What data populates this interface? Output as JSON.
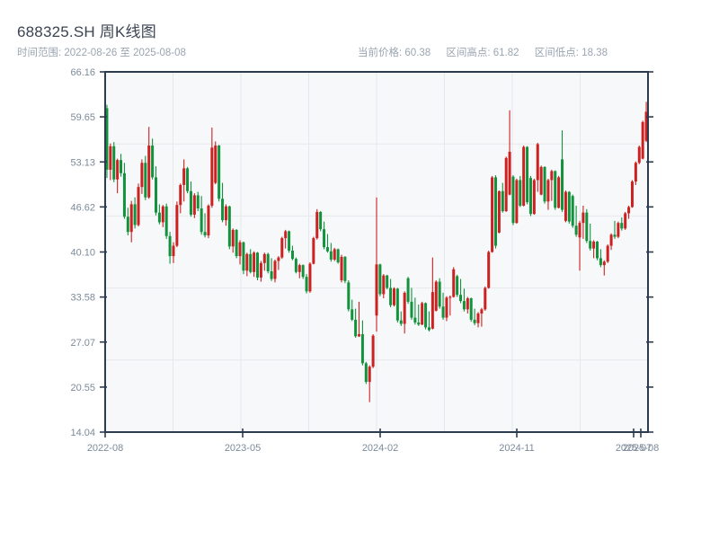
{
  "header": {
    "title": "688325.SH 周K线图",
    "range_label": "时间范围: 2022-08-26 至 2025-08-08",
    "info": [
      {
        "label": "当前价格:",
        "value": "60.38"
      },
      {
        "label": "区间高点:",
        "value": "61.82"
      },
      {
        "label": "区间低点:",
        "value": "18.38"
      }
    ]
  },
  "chart_data": {
    "type": "candlestick",
    "symbol": "688325.SH",
    "title": "688325.SH 周K线图",
    "freq": "weekly",
    "start_date": "2022-08-26",
    "end_date": "2025-08-08",
    "current_price": 60.38,
    "range_high": 61.82,
    "range_low": 18.38,
    "ylim": [
      14.04,
      66.16
    ],
    "y_ticks": [
      {
        "label": "66.16",
        "value": 66.16
      },
      {
        "label": "59.65",
        "value": 59.65
      },
      {
        "label": "53.13",
        "value": 53.13
      },
      {
        "label": "46.62",
        "value": 46.62
      },
      {
        "label": "40.10",
        "value": 40.1
      },
      {
        "label": "33.58",
        "value": 33.58
      },
      {
        "label": "27.07",
        "value": 27.07
      },
      {
        "label": "20.55",
        "value": 20.55
      },
      {
        "label": "14.04",
        "value": 14.04
      }
    ],
    "x_ticks": [
      {
        "label": "2022-08",
        "x": 117
      },
      {
        "label": "2023-05",
        "x": 270
      },
      {
        "label": "2024-02",
        "x": 423
      },
      {
        "label": "2024-11",
        "x": 575
      },
      {
        "label": "2025-07",
        "x": 705
      },
      {
        "label": "2025-08",
        "x": 713
      }
    ],
    "grid": {
      "h_divisions": 5,
      "v_divisions": 8
    },
    "colors": {
      "up": "#cb2120",
      "down": "#12923c"
    },
    "ohlc_format": [
      "open",
      "high",
      "low",
      "close"
    ],
    "ohlc": [
      [
        60.9,
        61.4,
        50.8,
        52.0
      ],
      [
        52.0,
        55.8,
        50.5,
        55.4
      ],
      [
        55.4,
        56.0,
        50.2,
        50.6
      ],
      [
        50.6,
        53.6,
        48.6,
        53.4
      ],
      [
        53.4,
        54.3,
        51.0,
        51.5
      ],
      [
        51.5,
        53.0,
        44.9,
        45.2
      ],
      [
        45.2,
        46.5,
        42.5,
        43.0
      ],
      [
        43.0,
        47.5,
        41.5,
        47.0
      ],
      [
        47.0,
        48.0,
        43.5,
        44.0
      ],
      [
        44.0,
        50.0,
        43.8,
        49.5
      ],
      [
        49.5,
        53.5,
        48.5,
        53.0
      ],
      [
        53.0,
        54.0,
        47.6,
        48.0
      ],
      [
        48.0,
        58.2,
        47.8,
        55.5
      ],
      [
        55.5,
        56.5,
        50.6,
        50.9
      ],
      [
        50.9,
        52.5,
        45.4,
        45.8
      ],
      [
        45.8,
        47.0,
        44.1,
        44.4
      ],
      [
        44.4,
        46.9,
        43.7,
        46.7
      ],
      [
        46.7,
        47.1,
        42.0,
        42.4
      ],
      [
        42.4,
        43.0,
        38.4,
        39.5
      ],
      [
        39.5,
        41.5,
        38.5,
        41.0
      ],
      [
        41.0,
        47.4,
        40.8,
        46.9
      ],
      [
        46.9,
        50.0,
        45.7,
        49.8
      ],
      [
        49.8,
        53.5,
        47.4,
        52.2
      ],
      [
        52.2,
        52.4,
        48.6,
        48.9
      ],
      [
        48.9,
        50.3,
        45.2,
        45.5
      ],
      [
        45.5,
        48.6,
        45.0,
        48.3
      ],
      [
        48.3,
        48.8,
        46.0,
        46.4
      ],
      [
        46.4,
        48.2,
        42.6,
        43.0
      ],
      [
        43.0,
        45.7,
        42.2,
        42.5
      ],
      [
        42.5,
        47.0,
        42.1,
        46.8
      ],
      [
        46.8,
        58.1,
        46.5,
        55.2
      ],
      [
        50.1,
        56.1,
        49.9,
        55.5
      ],
      [
        55.5,
        55.6,
        47.4,
        47.8
      ],
      [
        47.8,
        50.1,
        44.4,
        44.7
      ],
      [
        44.7,
        47.0,
        43.9,
        46.7
      ],
      [
        46.7,
        46.8,
        40.5,
        40.9
      ],
      [
        40.9,
        43.5,
        40.0,
        43.3
      ],
      [
        43.3,
        43.4,
        39.2,
        39.5
      ],
      [
        39.5,
        41.8,
        38.3,
        41.5
      ],
      [
        41.5,
        41.6,
        36.9,
        37.4
      ],
      [
        37.4,
        40.0,
        36.6,
        39.8
      ],
      [
        39.8,
        40.5,
        37.0,
        37.2
      ],
      [
        37.2,
        40.2,
        36.5,
        40.0
      ],
      [
        40.0,
        40.1,
        36.0,
        36.4
      ],
      [
        36.4,
        38.8,
        35.8,
        38.5
      ],
      [
        38.5,
        40.0,
        37.4,
        39.8
      ],
      [
        39.8,
        40.0,
        37.0,
        37.3
      ],
      [
        37.3,
        39.2,
        35.9,
        36.2
      ],
      [
        36.2,
        39.0,
        35.7,
        38.8
      ],
      [
        38.8,
        39.5,
        37.5,
        39.3
      ],
      [
        39.3,
        42.3,
        39.1,
        42.1
      ],
      [
        42.1,
        43.3,
        40.6,
        43.1
      ],
      [
        43.1,
        43.2,
        40.0,
        40.3
      ],
      [
        40.3,
        41.0,
        38.9,
        39.1
      ],
      [
        39.1,
        39.3,
        37.0,
        37.2
      ],
      [
        37.2,
        38.4,
        36.3,
        38.2
      ],
      [
        38.2,
        38.3,
        36.2,
        36.5
      ],
      [
        36.5,
        36.9,
        34.1,
        34.4
      ],
      [
        34.4,
        38.6,
        34.2,
        38.4
      ],
      [
        38.4,
        42.3,
        38.3,
        42.1
      ],
      [
        42.1,
        46.3,
        41.9,
        45.9
      ],
      [
        45.9,
        46.0,
        43.1,
        43.4
      ],
      [
        43.4,
        44.5,
        40.5,
        40.8
      ],
      [
        40.8,
        42.7,
        40.0,
        40.2
      ],
      [
        40.2,
        41.4,
        38.7,
        39.0
      ],
      [
        39.0,
        40.7,
        38.8,
        40.5
      ],
      [
        40.5,
        40.6,
        38.4,
        38.6
      ],
      [
        36.0,
        39.7,
        35.7,
        39.4
      ],
      [
        39.4,
        39.5,
        35.6,
        35.9
      ],
      [
        35.7,
        36.0,
        31.5,
        31.8
      ],
      [
        31.8,
        33.2,
        30.1,
        30.3
      ],
      [
        30.3,
        31.9,
        27.7,
        27.9
      ],
      [
        27.9,
        32.9,
        27.8,
        28.2
      ],
      [
        28.2,
        30.2,
        23.7,
        24.0
      ],
      [
        24.0,
        24.2,
        21.0,
        21.3
      ],
      [
        21.3,
        23.7,
        18.38,
        23.5
      ],
      [
        23.5,
        28.2,
        23.3,
        28.0
      ],
      [
        30.9,
        48.0,
        28.6,
        38.3
      ],
      [
        38.3,
        38.4,
        33.7,
        34.0
      ],
      [
        34.0,
        36.9,
        33.4,
        36.7
      ],
      [
        36.7,
        36.8,
        34.7,
        34.9
      ],
      [
        34.9,
        36.2,
        32.1,
        32.4
      ],
      [
        32.4,
        35.0,
        32.2,
        34.8
      ],
      [
        34.8,
        34.9,
        29.9,
        30.2
      ],
      [
        30.2,
        31.5,
        29.4,
        29.7
      ],
      [
        29.7,
        34.4,
        28.3,
        34.2
      ],
      [
        36.3,
        36.5,
        32.6,
        32.9
      ],
      [
        32.9,
        34.9,
        30.3,
        30.6
      ],
      [
        30.6,
        33.5,
        29.6,
        29.9
      ],
      [
        29.9,
        32.5,
        29.4,
        29.6
      ],
      [
        29.6,
        32.9,
        29.5,
        32.7
      ],
      [
        32.7,
        32.8,
        28.9,
        29.2
      ],
      [
        29.2,
        31.5,
        28.6,
        28.8
      ],
      [
        29.0,
        39.3,
        28.9,
        34.3
      ],
      [
        31.6,
        36.0,
        31.5,
        35.8
      ],
      [
        35.8,
        36.3,
        31.9,
        32.2
      ],
      [
        32.2,
        34.2,
        30.3,
        30.6
      ],
      [
        30.6,
        33.7,
        30.1,
        33.5
      ],
      [
        33.5,
        33.8,
        30.9,
        33.6
      ],
      [
        33.6,
        37.9,
        33.5,
        37.6
      ],
      [
        36.6,
        36.8,
        33.6,
        33.9
      ],
      [
        33.9,
        36.2,
        32.7,
        33.0
      ],
      [
        33.0,
        34.8,
        31.5,
        31.8
      ],
      [
        31.8,
        33.6,
        31.2,
        33.4
      ],
      [
        33.4,
        33.5,
        30.0,
        30.3
      ],
      [
        30.3,
        31.9,
        29.5,
        29.8
      ],
      [
        29.8,
        31.4,
        29.2,
        31.2
      ],
      [
        31.2,
        32.0,
        29.3,
        31.8
      ],
      [
        31.8,
        35.1,
        31.6,
        34.9
      ],
      [
        34.9,
        40.3,
        34.8,
        40.1
      ],
      [
        40.1,
        51.1,
        40.0,
        50.9
      ],
      [
        50.9,
        51.2,
        40.6,
        41.0
      ],
      [
        42.9,
        49.0,
        42.8,
        48.9
      ],
      [
        48.9,
        50.1,
        45.8,
        46.0
      ],
      [
        46.0,
        53.9,
        45.9,
        53.7
      ],
      [
        48.4,
        60.6,
        48.3,
        54.6
      ],
      [
        51.0,
        51.2,
        44.0,
        44.3
      ],
      [
        44.3,
        50.7,
        44.2,
        50.5
      ],
      [
        50.5,
        51.1,
        46.6,
        46.8
      ],
      [
        46.8,
        55.5,
        46.7,
        55.3
      ],
      [
        55.3,
        55.4,
        47.0,
        47.3
      ],
      [
        50.8,
        51.1,
        45.3,
        45.6
      ],
      [
        45.6,
        50.7,
        45.5,
        50.5
      ],
      [
        50.5,
        55.9,
        48.8,
        55.7
      ],
      [
        48.4,
        52.6,
        48.3,
        52.4
      ],
      [
        52.4,
        52.5,
        47.1,
        47.4
      ],
      [
        47.4,
        50.7,
        46.2,
        50.5
      ],
      [
        50.5,
        52.0,
        47.5,
        51.8
      ],
      [
        51.8,
        51.9,
        46.2,
        46.5
      ],
      [
        46.5,
        51.1,
        46.4,
        50.9
      ],
      [
        53.5,
        57.7,
        45.9,
        46.2
      ],
      [
        44.6,
        49.0,
        44.4,
        48.8
      ],
      [
        48.8,
        48.9,
        44.2,
        44.5
      ],
      [
        48.2,
        48.4,
        43.6,
        43.9
      ],
      [
        43.9,
        46.8,
        42.3,
        42.6
      ],
      [
        42.2,
        44.6,
        37.4,
        44.3
      ],
      [
        44.3,
        46.8,
        42.0,
        45.8
      ],
      [
        45.8,
        46.3,
        41.4,
        41.7
      ],
      [
        41.7,
        44.2,
        40.3,
        40.6
      ],
      [
        40.6,
        41.8,
        39.2,
        41.6
      ],
      [
        41.6,
        41.7,
        38.9,
        39.2
      ],
      [
        39.2,
        40.5,
        37.9,
        38.2
      ],
      [
        38.2,
        38.9,
        36.7,
        38.7
      ],
      [
        38.7,
        41.2,
        38.5,
        41.0
      ],
      [
        41.0,
        42.8,
        40.4,
        42.6
      ],
      [
        42.6,
        44.6,
        42.0,
        42.3
      ],
      [
        42.3,
        44.5,
        42.1,
        44.3
      ],
      [
        44.3,
        45.1,
        43.2,
        43.5
      ],
      [
        43.5,
        45.9,
        43.3,
        45.7
      ],
      [
        45.7,
        46.8,
        44.9,
        46.6
      ],
      [
        46.6,
        50.5,
        46.5,
        50.3
      ],
      [
        50.3,
        53.2,
        49.8,
        53.0
      ],
      [
        53.0,
        55.5,
        52.8,
        55.3
      ],
      [
        53.6,
        59.1,
        53.5,
        58.9
      ],
      [
        56.2,
        61.82,
        56.0,
        60.38
      ]
    ]
  }
}
